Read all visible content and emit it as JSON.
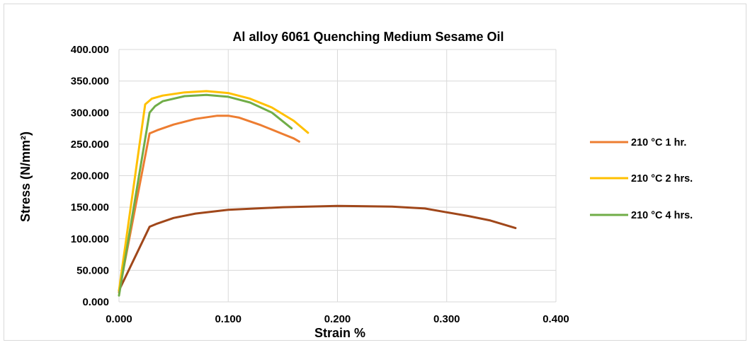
{
  "chart_data": {
    "type": "line",
    "title": "Al alloy 6061 Quenching Medium Sesame Oil",
    "xlabel": "Strain %",
    "ylabel": "Stress (N/mm²)",
    "xlim": [
      0,
      0.4
    ],
    "ylim": [
      0,
      400
    ],
    "x_ticks": [
      "0.000",
      "0.100",
      "0.200",
      "0.300",
      "0.400"
    ],
    "y_ticks": [
      "0.000",
      "50.000",
      "100.000",
      "150.000",
      "200.000",
      "250.000",
      "300.000",
      "350.000",
      "400.000"
    ],
    "grid": true,
    "legend_position": "right",
    "series": [
      {
        "name": "210 °C 1 hr.",
        "color": "#ed7d31",
        "in_legend": true,
        "points": [
          [
            0,
            15
          ],
          [
            0.028,
            267
          ],
          [
            0.035,
            272
          ],
          [
            0.05,
            281
          ],
          [
            0.07,
            290
          ],
          [
            0.09,
            295
          ],
          [
            0.1,
            295
          ],
          [
            0.11,
            292
          ],
          [
            0.13,
            280
          ],
          [
            0.15,
            266
          ],
          [
            0.16,
            259
          ],
          [
            0.165,
            254
          ]
        ]
      },
      {
        "name": "210 °C 2 hrs.",
        "color": "#ffc000",
        "in_legend": true,
        "points": [
          [
            0,
            18
          ],
          [
            0.024,
            313
          ],
          [
            0.03,
            322
          ],
          [
            0.04,
            327
          ],
          [
            0.06,
            332
          ],
          [
            0.08,
            334
          ],
          [
            0.1,
            331
          ],
          [
            0.12,
            322
          ],
          [
            0.14,
            308
          ],
          [
            0.16,
            287
          ],
          [
            0.173,
            268
          ]
        ]
      },
      {
        "name": "210 °C  4 hrs.",
        "color": "#70ad47",
        "in_legend": true,
        "points": [
          [
            0,
            10
          ],
          [
            0.028,
            300
          ],
          [
            0.033,
            310
          ],
          [
            0.04,
            318
          ],
          [
            0.06,
            326
          ],
          [
            0.08,
            328
          ],
          [
            0.1,
            325
          ],
          [
            0.12,
            316
          ],
          [
            0.14,
            300
          ],
          [
            0.158,
            275
          ]
        ]
      },
      {
        "name": "",
        "color": "#a0471a",
        "in_legend": false,
        "points": [
          [
            0,
            18
          ],
          [
            0.028,
            119
          ],
          [
            0.035,
            124
          ],
          [
            0.05,
            133
          ],
          [
            0.07,
            140
          ],
          [
            0.1,
            146
          ],
          [
            0.15,
            150
          ],
          [
            0.2,
            152
          ],
          [
            0.25,
            151
          ],
          [
            0.28,
            148
          ],
          [
            0.3,
            142
          ],
          [
            0.32,
            136
          ],
          [
            0.34,
            129
          ],
          [
            0.363,
            117
          ]
        ]
      }
    ]
  }
}
